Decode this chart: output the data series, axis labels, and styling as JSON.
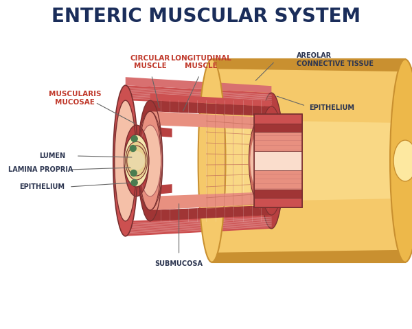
{
  "title": "ENTERIC MUSCULAR SYSTEM",
  "title_color": "#1a2d5a",
  "title_fontsize": 20,
  "title_fontweight": "bold",
  "bg_color": "#ffffff",
  "labels": {
    "circular_muscle": "CIRCULAR\nMUSCLE",
    "longitudinal_muscle": "LONGITUDINAL\nMUSCLE",
    "areolar_connective_tissue": "AREOLAR\nCONNECTIVE TISSUE",
    "epithelium_outer": "EPITHELIUM",
    "muscularis_mucosae": "MUSCULARIS\nMUCOSAE",
    "epithelium_inner": "EPITHELIUM",
    "lamina_propria": "LAMINA PROPRIA",
    "lumen": "LUMEN",
    "submucosa": "SUBMUCOSA"
  },
  "label_color_red": "#c0392b",
  "label_color_dark": "#2c3550",
  "colors": {
    "outer_yellow": "#f5c96a",
    "outer_yellow_mid": "#edb84a",
    "outer_yellow_dark": "#c99030",
    "outer_yellow_light": "#fde8a0",
    "circ_muscle_dark": "#b84040",
    "circ_muscle_mid": "#cc5050",
    "circ_muscle_light": "#d87070",
    "long_muscle_dark": "#a03535",
    "submucosa_dark": "#d07060",
    "submucosa_mid": "#e89080",
    "submucosa_light": "#f5c0a8",
    "submucosa_vlight": "#faddcc",
    "inner_yellow": "#f5e8b0",
    "inner_cream": "#f0dea0",
    "lumen_color": "#e8d090",
    "lumen_inner": "#ead8a8",
    "green_dot": "#4a7c50",
    "outline": "#7a3030",
    "outline_light": "#b06060",
    "hex_line": "#c06858"
  }
}
